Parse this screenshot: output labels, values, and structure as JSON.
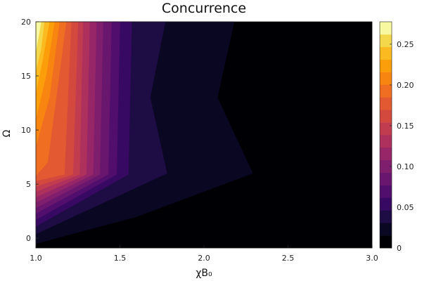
{
  "chart_data": {
    "type": "heatmap",
    "subtype": "filled-contour",
    "title": "Concurrence",
    "xlabel": "χB₀",
    "ylabel": "Ω",
    "xlim": [
      1.0,
      3.0
    ],
    "ylim": [
      -0.9,
      20
    ],
    "x_ticks": [
      1.0,
      1.5,
      2.0,
      2.5,
      3.0
    ],
    "x_tick_labels": [
      "1.0",
      "1.5",
      "2.0",
      "2.5",
      "3.0"
    ],
    "y_ticks": [
      0,
      5,
      10,
      15,
      20
    ],
    "y_tick_labels": [
      "0",
      "5",
      "10",
      "15",
      "20"
    ],
    "colorbar": {
      "colormap": "inferno",
      "range": [
        0,
        0.2775
      ],
      "ticks": [
        0,
        0.05,
        0.1,
        0.15,
        0.2,
        0.25
      ],
      "tick_labels": [
        "0",
        "0.05",
        "0.10",
        "0.15",
        "0.20",
        "0.25"
      ],
      "levels": 18,
      "colors": [
        "#000004",
        "#0a0722",
        "#1e0c45",
        "#380962",
        "#510e6c",
        "#69166e",
        "#7f1e6c",
        "#962667",
        "#ad305d",
        "#c23c4f",
        "#d4493e",
        "#e35932",
        "#ef6e21",
        "#f8850f",
        "#fc9e0a",
        "#fbba1f",
        "#f3d84b",
        "#f8f8a0"
      ]
    },
    "contour_boundaries": [
      {
        "level": 0.015,
        "points": [
          [
            1.0,
            -0.5
          ],
          [
            1.6,
            2.0
          ],
          [
            2.29,
            6.0
          ],
          [
            2.08,
            13.0
          ],
          [
            2.18,
            20.0
          ]
        ]
      },
      {
        "level": 0.031,
        "points": [
          [
            1.0,
            0.4
          ],
          [
            1.78,
            6.0
          ],
          [
            1.68,
            13.0
          ],
          [
            1.77,
            20.0
          ]
        ]
      },
      {
        "level": 0.046,
        "points": [
          [
            1.0,
            1.1
          ],
          [
            1.55,
            5.9
          ],
          [
            1.57,
            20.0
          ]
        ]
      },
      {
        "level": 0.062,
        "points": [
          [
            1.0,
            1.7
          ],
          [
            1.48,
            5.9
          ],
          [
            1.5,
            20.0
          ]
        ]
      },
      {
        "level": 0.077,
        "points": [
          [
            1.0,
            2.3
          ],
          [
            1.43,
            5.9
          ],
          [
            1.45,
            20.0
          ]
        ]
      },
      {
        "level": 0.093,
        "points": [
          [
            1.0,
            2.8
          ],
          [
            1.38,
            5.9
          ],
          [
            1.4,
            20.0
          ]
        ]
      },
      {
        "level": 0.108,
        "points": [
          [
            1.0,
            3.3
          ],
          [
            1.34,
            5.9
          ],
          [
            1.36,
            20.0
          ]
        ]
      },
      {
        "level": 0.123,
        "points": [
          [
            1.0,
            3.8
          ],
          [
            1.3,
            5.9
          ],
          [
            1.32,
            20.0
          ]
        ]
      },
      {
        "level": 0.139,
        "points": [
          [
            1.0,
            4.3
          ],
          [
            1.26,
            5.9
          ],
          [
            1.28,
            20.0
          ]
        ]
      },
      {
        "level": 0.154,
        "points": [
          [
            1.0,
            4.8
          ],
          [
            1.22,
            5.9
          ],
          [
            1.25,
            20.0
          ]
        ]
      },
      {
        "level": 0.17,
        "points": [
          [
            1.0,
            5.3
          ],
          [
            1.17,
            5.9
          ],
          [
            1.21,
            20.0
          ]
        ]
      },
      {
        "level": 0.185,
        "points": [
          [
            1.0,
            5.8
          ],
          [
            1.07,
            7.0
          ],
          [
            1.18,
            20.0
          ]
        ]
      },
      {
        "level": 0.2,
        "points": [
          [
            1.0,
            8.5
          ],
          [
            1.08,
            13.0
          ],
          [
            1.14,
            20.0
          ]
        ]
      },
      {
        "level": 0.216,
        "points": [
          [
            1.0,
            11.0
          ],
          [
            1.06,
            15.0
          ],
          [
            1.11,
            20.0
          ]
        ]
      },
      {
        "level": 0.231,
        "points": [
          [
            1.0,
            13.5
          ],
          [
            1.04,
            16.5
          ],
          [
            1.08,
            20.0
          ]
        ]
      },
      {
        "level": 0.247,
        "points": [
          [
            1.0,
            15.5
          ],
          [
            1.03,
            17.5
          ],
          [
            1.05,
            20.0
          ]
        ]
      },
      {
        "level": 0.262,
        "points": [
          [
            1.0,
            17.3
          ],
          [
            1.02,
            19.0
          ],
          [
            1.03,
            20.0
          ]
        ]
      }
    ]
  }
}
